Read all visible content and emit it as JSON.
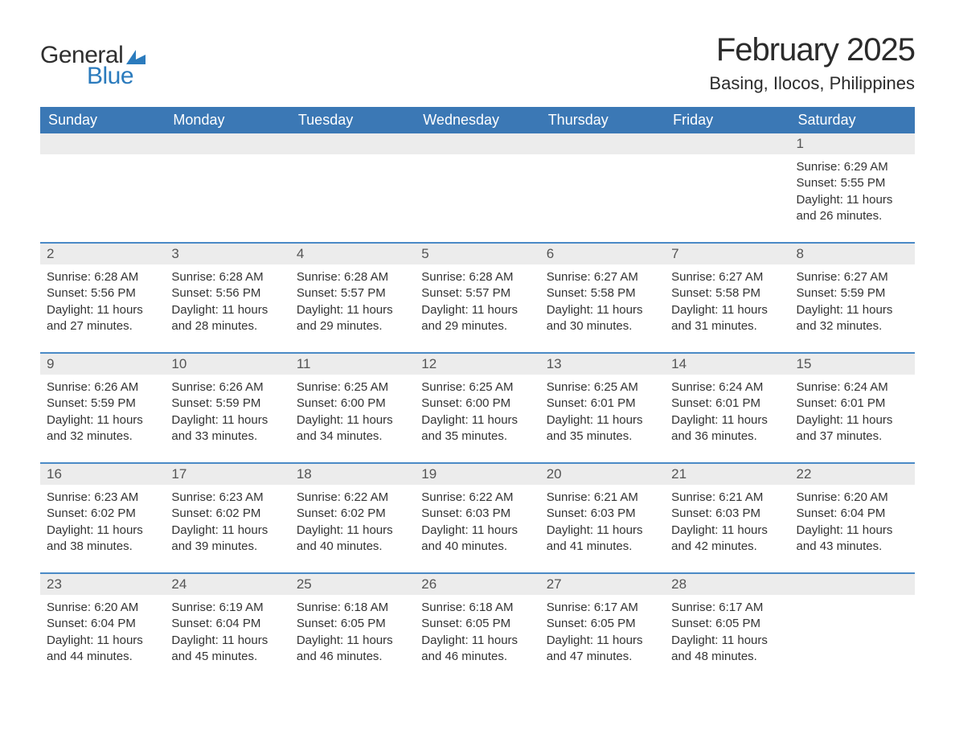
{
  "logo": {
    "general": "General",
    "blue": "Blue",
    "icon_color": "#2b7bbd"
  },
  "header": {
    "month_title": "February 2025",
    "location": "Basing, Ilocos, Philippines"
  },
  "colors": {
    "header_bg": "#3b78b5",
    "week_border": "#4a8ac6",
    "daynum_bg": "#ececec",
    "text": "#333333",
    "logo_blue": "#2b7bbd"
  },
  "day_names": [
    "Sunday",
    "Monday",
    "Tuesday",
    "Wednesday",
    "Thursday",
    "Friday",
    "Saturday"
  ],
  "weeks": [
    [
      null,
      null,
      null,
      null,
      null,
      null,
      {
        "n": "1",
        "sunrise": "Sunrise: 6:29 AM",
        "sunset": "Sunset: 5:55 PM",
        "daylight": "Daylight: 11 hours and 26 minutes."
      }
    ],
    [
      {
        "n": "2",
        "sunrise": "Sunrise: 6:28 AM",
        "sunset": "Sunset: 5:56 PM",
        "daylight": "Daylight: 11 hours and 27 minutes."
      },
      {
        "n": "3",
        "sunrise": "Sunrise: 6:28 AM",
        "sunset": "Sunset: 5:56 PM",
        "daylight": "Daylight: 11 hours and 28 minutes."
      },
      {
        "n": "4",
        "sunrise": "Sunrise: 6:28 AM",
        "sunset": "Sunset: 5:57 PM",
        "daylight": "Daylight: 11 hours and 29 minutes."
      },
      {
        "n": "5",
        "sunrise": "Sunrise: 6:28 AM",
        "sunset": "Sunset: 5:57 PM",
        "daylight": "Daylight: 11 hours and 29 minutes."
      },
      {
        "n": "6",
        "sunrise": "Sunrise: 6:27 AM",
        "sunset": "Sunset: 5:58 PM",
        "daylight": "Daylight: 11 hours and 30 minutes."
      },
      {
        "n": "7",
        "sunrise": "Sunrise: 6:27 AM",
        "sunset": "Sunset: 5:58 PM",
        "daylight": "Daylight: 11 hours and 31 minutes."
      },
      {
        "n": "8",
        "sunrise": "Sunrise: 6:27 AM",
        "sunset": "Sunset: 5:59 PM",
        "daylight": "Daylight: 11 hours and 32 minutes."
      }
    ],
    [
      {
        "n": "9",
        "sunrise": "Sunrise: 6:26 AM",
        "sunset": "Sunset: 5:59 PM",
        "daylight": "Daylight: 11 hours and 32 minutes."
      },
      {
        "n": "10",
        "sunrise": "Sunrise: 6:26 AM",
        "sunset": "Sunset: 5:59 PM",
        "daylight": "Daylight: 11 hours and 33 minutes."
      },
      {
        "n": "11",
        "sunrise": "Sunrise: 6:25 AM",
        "sunset": "Sunset: 6:00 PM",
        "daylight": "Daylight: 11 hours and 34 minutes."
      },
      {
        "n": "12",
        "sunrise": "Sunrise: 6:25 AM",
        "sunset": "Sunset: 6:00 PM",
        "daylight": "Daylight: 11 hours and 35 minutes."
      },
      {
        "n": "13",
        "sunrise": "Sunrise: 6:25 AM",
        "sunset": "Sunset: 6:01 PM",
        "daylight": "Daylight: 11 hours and 35 minutes."
      },
      {
        "n": "14",
        "sunrise": "Sunrise: 6:24 AM",
        "sunset": "Sunset: 6:01 PM",
        "daylight": "Daylight: 11 hours and 36 minutes."
      },
      {
        "n": "15",
        "sunrise": "Sunrise: 6:24 AM",
        "sunset": "Sunset: 6:01 PM",
        "daylight": "Daylight: 11 hours and 37 minutes."
      }
    ],
    [
      {
        "n": "16",
        "sunrise": "Sunrise: 6:23 AM",
        "sunset": "Sunset: 6:02 PM",
        "daylight": "Daylight: 11 hours and 38 minutes."
      },
      {
        "n": "17",
        "sunrise": "Sunrise: 6:23 AM",
        "sunset": "Sunset: 6:02 PM",
        "daylight": "Daylight: 11 hours and 39 minutes."
      },
      {
        "n": "18",
        "sunrise": "Sunrise: 6:22 AM",
        "sunset": "Sunset: 6:02 PM",
        "daylight": "Daylight: 11 hours and 40 minutes."
      },
      {
        "n": "19",
        "sunrise": "Sunrise: 6:22 AM",
        "sunset": "Sunset: 6:03 PM",
        "daylight": "Daylight: 11 hours and 40 minutes."
      },
      {
        "n": "20",
        "sunrise": "Sunrise: 6:21 AM",
        "sunset": "Sunset: 6:03 PM",
        "daylight": "Daylight: 11 hours and 41 minutes."
      },
      {
        "n": "21",
        "sunrise": "Sunrise: 6:21 AM",
        "sunset": "Sunset: 6:03 PM",
        "daylight": "Daylight: 11 hours and 42 minutes."
      },
      {
        "n": "22",
        "sunrise": "Sunrise: 6:20 AM",
        "sunset": "Sunset: 6:04 PM",
        "daylight": "Daylight: 11 hours and 43 minutes."
      }
    ],
    [
      {
        "n": "23",
        "sunrise": "Sunrise: 6:20 AM",
        "sunset": "Sunset: 6:04 PM",
        "daylight": "Daylight: 11 hours and 44 minutes."
      },
      {
        "n": "24",
        "sunrise": "Sunrise: 6:19 AM",
        "sunset": "Sunset: 6:04 PM",
        "daylight": "Daylight: 11 hours and 45 minutes."
      },
      {
        "n": "25",
        "sunrise": "Sunrise: 6:18 AM",
        "sunset": "Sunset: 6:05 PM",
        "daylight": "Daylight: 11 hours and 46 minutes."
      },
      {
        "n": "26",
        "sunrise": "Sunrise: 6:18 AM",
        "sunset": "Sunset: 6:05 PM",
        "daylight": "Daylight: 11 hours and 46 minutes."
      },
      {
        "n": "27",
        "sunrise": "Sunrise: 6:17 AM",
        "sunset": "Sunset: 6:05 PM",
        "daylight": "Daylight: 11 hours and 47 minutes."
      },
      {
        "n": "28",
        "sunrise": "Sunrise: 6:17 AM",
        "sunset": "Sunset: 6:05 PM",
        "daylight": "Daylight: 11 hours and 48 minutes."
      },
      null
    ]
  ]
}
